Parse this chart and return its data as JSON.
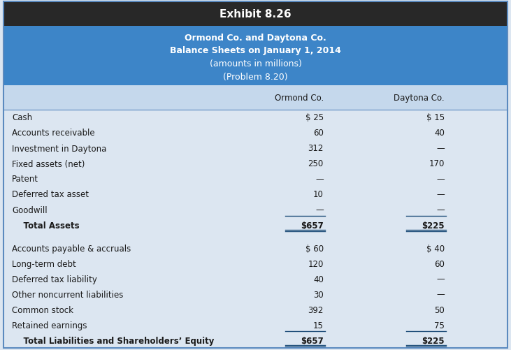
{
  "exhibit_title": "Exhibit 8.26",
  "subtitle_lines": [
    "Ormond Co. and Daytona Co.",
    "Balance Sheets on January 1, 2014",
    "(amounts in millions)",
    "(Problem 8.20)"
  ],
  "rows": [
    {
      "label": "Cash",
      "ormond": "$ 25",
      "daytona": "$ 15",
      "bold": false,
      "underline": false,
      "double_underline": false,
      "spacer": false
    },
    {
      "label": "Accounts receivable",
      "ormond": "60",
      "daytona": "40",
      "bold": false,
      "underline": false,
      "double_underline": false,
      "spacer": false
    },
    {
      "label": "Investment in Daytona",
      "ormond": "312",
      "daytona": "—",
      "bold": false,
      "underline": false,
      "double_underline": false,
      "spacer": false
    },
    {
      "label": "Fixed assets (net)",
      "ormond": "250",
      "daytona": "170",
      "bold": false,
      "underline": false,
      "double_underline": false,
      "spacer": false
    },
    {
      "label": "Patent",
      "ormond": "—",
      "daytona": "—",
      "bold": false,
      "underline": false,
      "double_underline": false,
      "spacer": false
    },
    {
      "label": "Deferred tax asset",
      "ormond": "10",
      "daytona": "—",
      "bold": false,
      "underline": false,
      "double_underline": false,
      "spacer": false
    },
    {
      "label": "Goodwill",
      "ormond": "—",
      "daytona": "—",
      "bold": false,
      "underline": true,
      "double_underline": false,
      "spacer": false
    },
    {
      "label": "    Total Assets",
      "ormond": "$657",
      "daytona": "$225",
      "bold": true,
      "underline": false,
      "double_underline": true,
      "spacer": false
    },
    {
      "label": "",
      "ormond": "",
      "daytona": "",
      "bold": false,
      "underline": false,
      "double_underline": false,
      "spacer": true
    },
    {
      "label": "Accounts payable & accruals",
      "ormond": "$ 60",
      "daytona": "$ 40",
      "bold": false,
      "underline": false,
      "double_underline": false,
      "spacer": false
    },
    {
      "label": "Long-term debt",
      "ormond": "120",
      "daytona": "60",
      "bold": false,
      "underline": false,
      "double_underline": false,
      "spacer": false
    },
    {
      "label": "Deferred tax liability",
      "ormond": "40",
      "daytona": "—",
      "bold": false,
      "underline": false,
      "double_underline": false,
      "spacer": false
    },
    {
      "label": "Other noncurrent liabilities",
      "ormond": "30",
      "daytona": "—",
      "bold": false,
      "underline": false,
      "double_underline": false,
      "spacer": false
    },
    {
      "label": "Common stock",
      "ormond": "392",
      "daytona": "50",
      "bold": false,
      "underline": false,
      "double_underline": false,
      "spacer": false
    },
    {
      "label": "Retained earnings",
      "ormond": "15",
      "daytona": "75",
      "bold": false,
      "underline": true,
      "double_underline": false,
      "spacer": false
    },
    {
      "label": "    Total Liabilities and Shareholders’ Equity",
      "ormond": "$657",
      "daytona": "$225",
      "bold": true,
      "underline": false,
      "double_underline": true,
      "spacer": false
    }
  ],
  "header_bg": "#282828",
  "header_text_color": "#ffffff",
  "subheader_bg": "#3d85c8",
  "subheader_text_color": "#ffffff",
  "col_header_bg": "#c5d8ec",
  "body_bg": "#dce6f1",
  "body_text_color": "#1a1a1a",
  "underline_color": "#1f4e79",
  "border_color": "#5b8abf"
}
